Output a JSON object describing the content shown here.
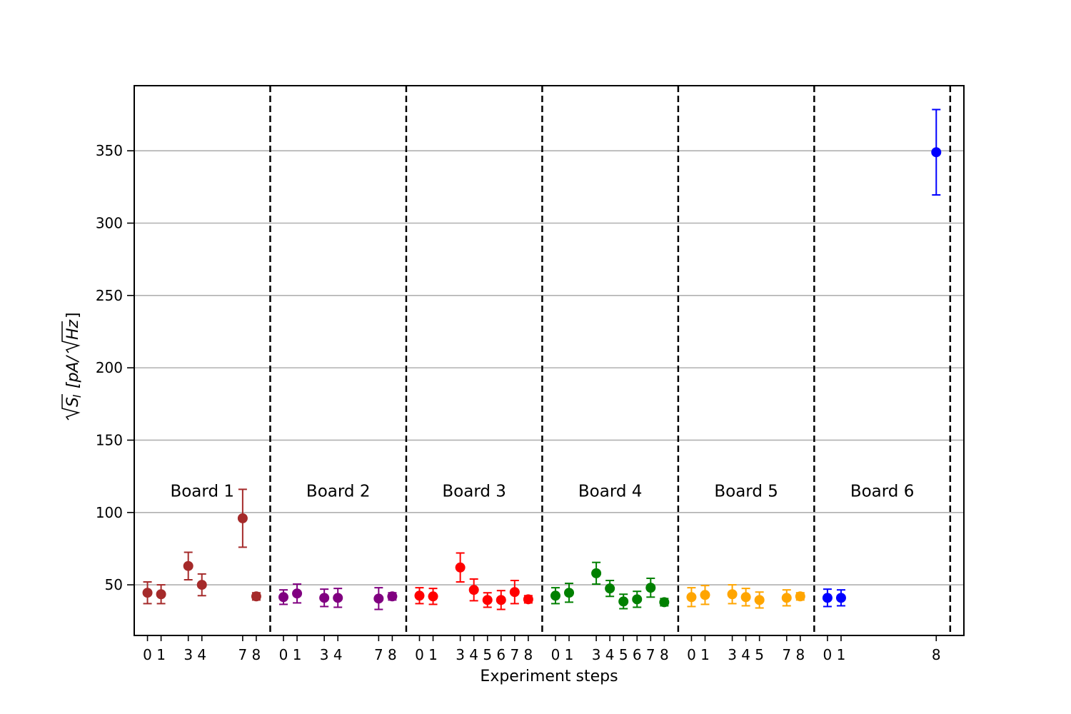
{
  "chart_data": {
    "type": "scatter",
    "xlabel": "Experiment steps",
    "ylabel": "√S_I [pA/√Hz]",
    "ylim": [
      15,
      395
    ],
    "yticks": [
      50,
      100,
      150,
      200,
      250,
      300,
      350
    ],
    "grid": "horizontal",
    "boards": [
      {
        "label": "Board 1",
        "color": "#a52a2a",
        "points": [
          {
            "step": "0",
            "y": 44.5,
            "err": 7.5
          },
          {
            "step": "1",
            "y": 43.5,
            "err": 6.5
          },
          {
            "step": "3",
            "y": 63,
            "err": 9.5
          },
          {
            "step": "4",
            "y": 50,
            "err": 7.5
          },
          {
            "step": "7",
            "y": 96,
            "err": 20
          },
          {
            "step": "8",
            "y": 42,
            "err": 2.5
          }
        ]
      },
      {
        "label": "Board 2",
        "color": "#800080",
        "points": [
          {
            "step": "0",
            "y": 41.5,
            "err": 5
          },
          {
            "step": "1",
            "y": 44,
            "err": 6.5
          },
          {
            "step": "3",
            "y": 41,
            "err": 6
          },
          {
            "step": "4",
            "y": 41,
            "err": 6.5
          },
          {
            "step": "7",
            "y": 40.5,
            "err": 7.5
          },
          {
            "step": "8",
            "y": 42,
            "err": 2.5
          }
        ]
      },
      {
        "label": "Board 3",
        "color": "#ff0000",
        "points": [
          {
            "step": "0",
            "y": 42.5,
            "err": 5.5
          },
          {
            "step": "1",
            "y": 42,
            "err": 5.5
          },
          {
            "step": "3",
            "y": 62,
            "err": 10
          },
          {
            "step": "4",
            "y": 46.5,
            "err": 7.5
          },
          {
            "step": "5",
            "y": 39.5,
            "err": 5
          },
          {
            "step": "6",
            "y": 39.5,
            "err": 6.5
          },
          {
            "step": "7",
            "y": 45,
            "err": 8
          },
          {
            "step": "8",
            "y": 40,
            "err": 2.5
          }
        ]
      },
      {
        "label": "Board 4",
        "color": "#008000",
        "points": [
          {
            "step": "0",
            "y": 42.5,
            "err": 5.5
          },
          {
            "step": "1",
            "y": 44.5,
            "err": 6.5
          },
          {
            "step": "3",
            "y": 58,
            "err": 7.5
          },
          {
            "step": "4",
            "y": 47.5,
            "err": 5.5
          },
          {
            "step": "5",
            "y": 38.5,
            "err": 5
          },
          {
            "step": "6",
            "y": 40,
            "err": 5.5
          },
          {
            "step": "7",
            "y": 48,
            "err": 6.5
          },
          {
            "step": "8",
            "y": 38,
            "err": 2.5
          }
        ]
      },
      {
        "label": "Board 5",
        "color": "#ffa500",
        "points": [
          {
            "step": "0",
            "y": 41.5,
            "err": 6.5
          },
          {
            "step": "1",
            "y": 43,
            "err": 6.5
          },
          {
            "step": "3",
            "y": 43.5,
            "err": 6.5
          },
          {
            "step": "4",
            "y": 41.5,
            "err": 6
          },
          {
            "step": "5",
            "y": 39.5,
            "err": 5.5
          },
          {
            "step": "7",
            "y": 41,
            "err": 5.5
          },
          {
            "step": "8",
            "y": 42,
            "err": 2.5
          }
        ]
      },
      {
        "label": "Board 6",
        "color": "#0000ff",
        "points": [
          {
            "step": "0",
            "y": 41,
            "err": 6
          },
          {
            "step": "1",
            "y": 41,
            "err": 5.5
          },
          {
            "step": "8",
            "y": 349,
            "err": 29.5
          }
        ]
      }
    ]
  }
}
